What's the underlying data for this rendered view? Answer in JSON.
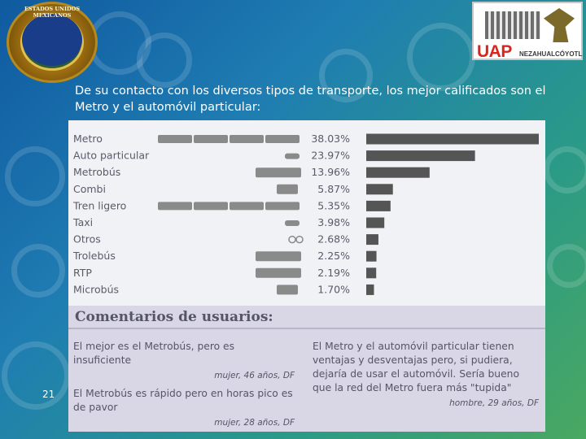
{
  "header": {
    "seal_text": "ESTADOS UNIDOS MEXICANOS",
    "logo_text": "UAP",
    "logo_subtext": "NEZAHUALCÓYOTL"
  },
  "caption": "De su contacto con los diversos tipos de transporte, los mejor calificados son el Metro y el automóvil particular:",
  "chart_data": {
    "type": "bar",
    "orientation": "horizontal",
    "categories": [
      "Metro",
      "Auto particular",
      "Metrobús",
      "Combi",
      "Tren ligero",
      "Taxi",
      "Otros",
      "Trolebús",
      "RTP",
      "Microbús"
    ],
    "value_labels": [
      "38.03%",
      "23.97%",
      "13.96%",
      "5.87%",
      "5.35%",
      "3.98%",
      "2.68%",
      "2.25%",
      "2.19%",
      "1.70%"
    ],
    "values": [
      38.03,
      23.97,
      13.96,
      5.87,
      5.35,
      3.98,
      2.68,
      2.25,
      2.19,
      1.7
    ],
    "icons": [
      "train-icon",
      "car-icon",
      "bus-icon",
      "van-icon",
      "train-icon",
      "car-icon",
      "bicycle-icon",
      "bus-icon",
      "bus-icon",
      "van-icon"
    ],
    "xlim": [
      0,
      38.03
    ],
    "grid": false,
    "bar_color": "#555555"
  },
  "comments": {
    "title": "Comentarios de usuarios:",
    "items": [
      {
        "quote": "El mejor es el Metrobús, pero es insuficiente",
        "author": "mujer, 46 años, DF"
      },
      {
        "quote": "El Metrobús es rápido pero en horas pico es de pavor",
        "author": "mujer, 28 años, DF"
      },
      {
        "quote": "El Metro y el automóvil particular tienen ventajas y desventajas pero, si pudiera, dejaría de usar el automóvil. Sería bueno que la red del Metro fuera más \"tupida\"",
        "author": "hombre, 29 años, DF"
      }
    ]
  },
  "footer": {
    "page_number": "21"
  }
}
